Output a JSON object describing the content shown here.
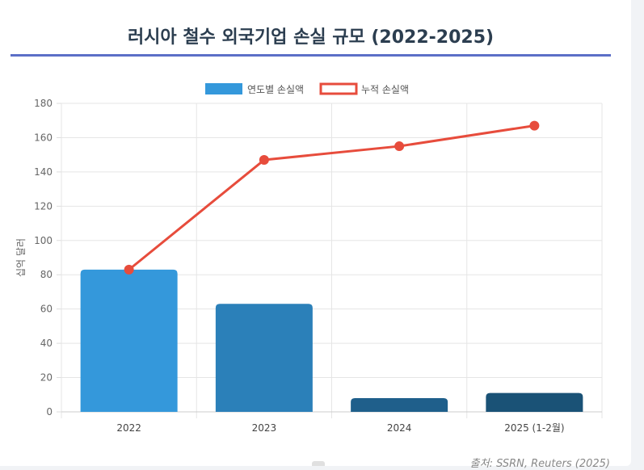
{
  "page": {
    "title": "러시아 철수 외국기업 손실 규모 (2022-2025)",
    "source": "출처: SSRN, Reuters (2025)"
  },
  "chart_data": {
    "type": "bar",
    "title": "러시아 철수 외국기업 손실 규모 (2022-2025)",
    "xlabel": "",
    "ylabel": "십억 달러",
    "categories": [
      "2022",
      "2023",
      "2024",
      "2025 (1-2월)"
    ],
    "ylim": [
      0,
      180
    ],
    "yticks": [
      0,
      20,
      40,
      60,
      80,
      100,
      120,
      140,
      160,
      180
    ],
    "grid": true,
    "legend_position": "top-center",
    "series": [
      {
        "name": "연도별 손실액",
        "type": "bar",
        "values": [
          83,
          63,
          8,
          11
        ],
        "colors": [
          "#3498db",
          "#2b80b9",
          "#1f5f8b",
          "#1a5276"
        ]
      },
      {
        "name": "누적 손실액",
        "type": "line",
        "values": [
          83,
          147,
          155,
          167
        ],
        "color": "#e74c3c"
      }
    ]
  }
}
